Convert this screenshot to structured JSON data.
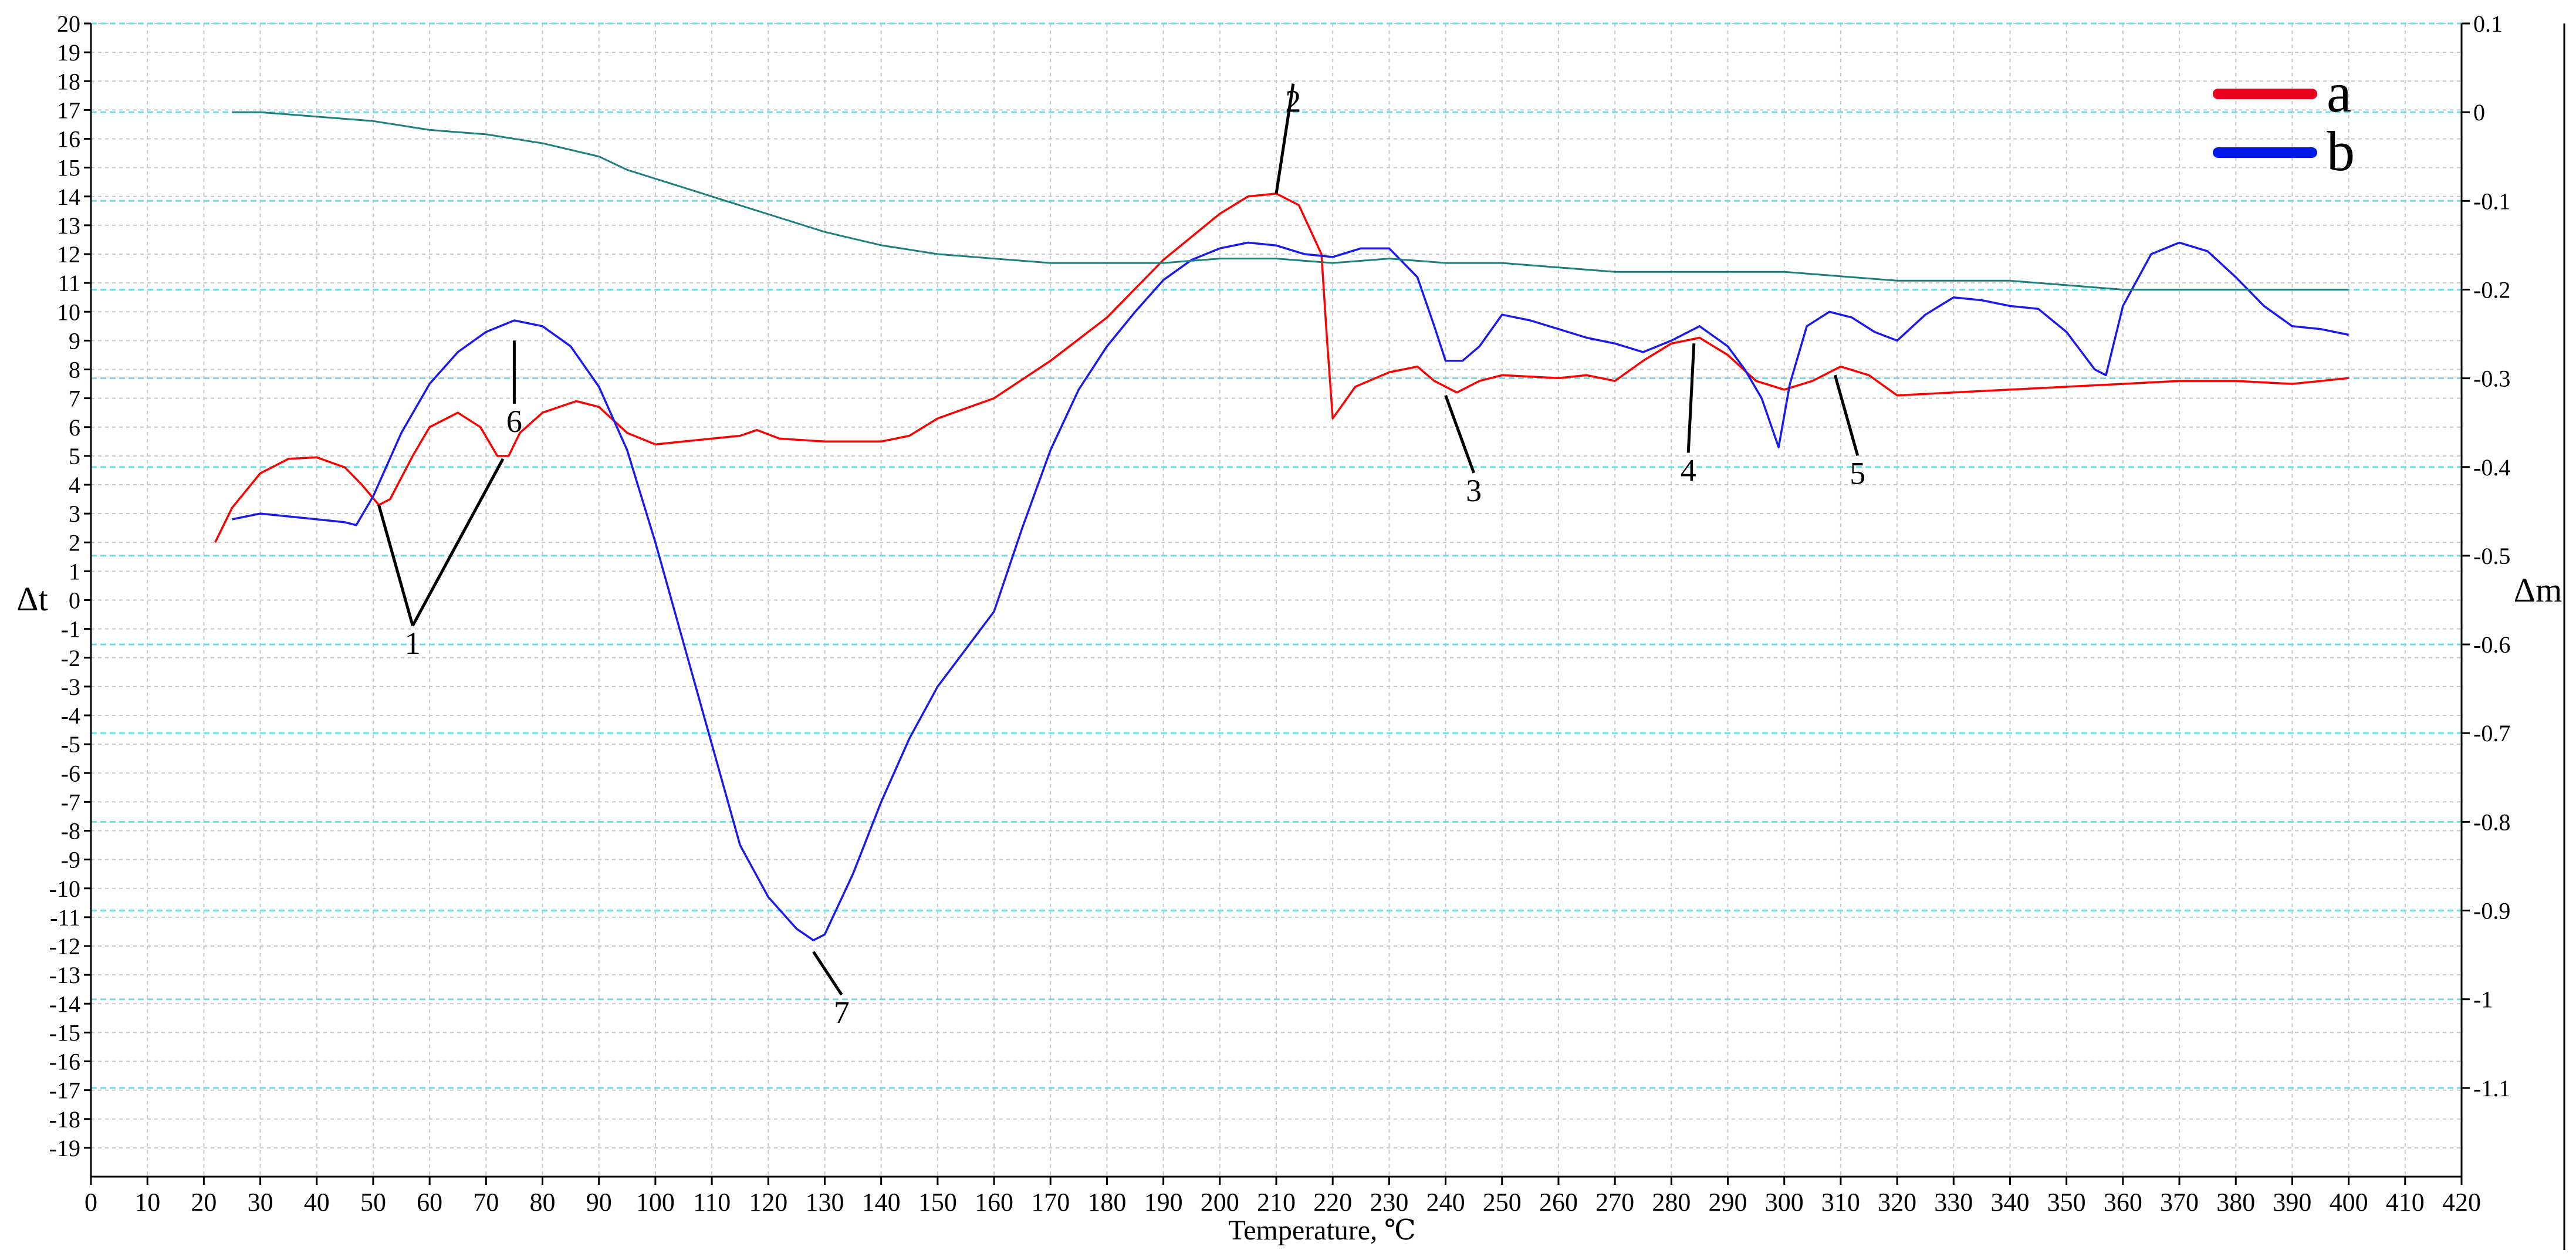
{
  "chart_data": {
    "type": "line",
    "title": "",
    "xlabel": "Temperature, ℃",
    "ylabel_left": "Δt",
    "ylabel_right": "Δm",
    "xlim": [
      0,
      420
    ],
    "ylim_left": [
      -20,
      20
    ],
    "ylim_right": [
      -1.2,
      0.1
    ],
    "x_ticks": [
      0,
      10,
      20,
      30,
      40,
      50,
      60,
      70,
      80,
      90,
      100,
      110,
      120,
      130,
      140,
      150,
      160,
      170,
      180,
      190,
      200,
      210,
      220,
      230,
      240,
      250,
      260,
      270,
      280,
      290,
      300,
      310,
      320,
      330,
      340,
      350,
      360,
      370,
      380,
      390,
      400,
      410,
      420
    ],
    "y_left_ticks": [
      20,
      19,
      18,
      17,
      16,
      15,
      14,
      13,
      12,
      11,
      10,
      9,
      8,
      7,
      6,
      5,
      4,
      3,
      2,
      1,
      0,
      -1,
      -2,
      -3,
      -4,
      -5,
      -6,
      -7,
      -8,
      -9,
      -10,
      -11,
      -12,
      -13,
      -14,
      -15,
      -16,
      -17,
      -18,
      -19
    ],
    "y_right_ticks": [
      "0.1",
      "0",
      "-0.1",
      "-0.2",
      "-0.3",
      "-0.4",
      "-0.5",
      "-0.6",
      "-0.7",
      "-0.8",
      "-0.9",
      "-1",
      "-1.1"
    ],
    "y_right_values": [
      0.1,
      0,
      -0.1,
      -0.2,
      -0.3,
      -0.4,
      -0.5,
      -0.6,
      -0.7,
      -0.8,
      -0.9,
      -1,
      -1.1
    ],
    "grid": true,
    "legend": {
      "position": "top-right",
      "entries": [
        {
          "label": "a",
          "color": "#e8001c"
        },
        {
          "label": "b",
          "color": "#0019e6"
        }
      ]
    },
    "series": [
      {
        "name": "a",
        "color": "#ff0000",
        "axis": "left",
        "points": [
          [
            22,
            2
          ],
          [
            25,
            3.2
          ],
          [
            30,
            4.4
          ],
          [
            35,
            4.9
          ],
          [
            40,
            4.95
          ],
          [
            45,
            4.6
          ],
          [
            48,
            4
          ],
          [
            51,
            3.3
          ],
          [
            53,
            3.5
          ],
          [
            57,
            5
          ],
          [
            60,
            6
          ],
          [
            65,
            6.5
          ],
          [
            69,
            6
          ],
          [
            72,
            5
          ],
          [
            74,
            5
          ],
          [
            76,
            5.8
          ],
          [
            80,
            6.5
          ],
          [
            86,
            6.9
          ],
          [
            90,
            6.7
          ],
          [
            95,
            5.8
          ],
          [
            100,
            5.4
          ],
          [
            105,
            5.5
          ],
          [
            110,
            5.6
          ],
          [
            115,
            5.7
          ],
          [
            118,
            5.9
          ],
          [
            122,
            5.6
          ],
          [
            130,
            5.5
          ],
          [
            140,
            5.5
          ],
          [
            145,
            5.7
          ],
          [
            150,
            6.3
          ],
          [
            160,
            7
          ],
          [
            170,
            8.3
          ],
          [
            180,
            9.8
          ],
          [
            190,
            11.8
          ],
          [
            200,
            13.4
          ],
          [
            205,
            14
          ],
          [
            210,
            14.1
          ],
          [
            214,
            13.7
          ],
          [
            218,
            12
          ],
          [
            219,
            9
          ],
          [
            220,
            6.3
          ],
          [
            224,
            7.4
          ],
          [
            230,
            7.9
          ],
          [
            235,
            8.1
          ],
          [
            238,
            7.6
          ],
          [
            242,
            7.2
          ],
          [
            246,
            7.6
          ],
          [
            250,
            7.8
          ],
          [
            260,
            7.7
          ],
          [
            265,
            7.8
          ],
          [
            270,
            7.6
          ],
          [
            275,
            8.3
          ],
          [
            280,
            8.9
          ],
          [
            285,
            9.1
          ],
          [
            290,
            8.5
          ],
          [
            295,
            7.6
          ],
          [
            300,
            7.3
          ],
          [
            305,
            7.6
          ],
          [
            310,
            8.1
          ],
          [
            315,
            7.8
          ],
          [
            320,
            7.1
          ],
          [
            330,
            7.2
          ],
          [
            340,
            7.3
          ],
          [
            350,
            7.4
          ],
          [
            360,
            7.5
          ],
          [
            370,
            7.6
          ],
          [
            380,
            7.6
          ],
          [
            390,
            7.5
          ],
          [
            400,
            7.7
          ]
        ]
      },
      {
        "name": "b",
        "color": "#1a1aee",
        "axis": "left",
        "points": [
          [
            25,
            2.8
          ],
          [
            30,
            3
          ],
          [
            35,
            2.9
          ],
          [
            40,
            2.8
          ],
          [
            45,
            2.7
          ],
          [
            47,
            2.6
          ],
          [
            50,
            3.6
          ],
          [
            55,
            5.8
          ],
          [
            60,
            7.5
          ],
          [
            65,
            8.6
          ],
          [
            70,
            9.3
          ],
          [
            75,
            9.7
          ],
          [
            80,
            9.5
          ],
          [
            85,
            8.8
          ],
          [
            90,
            7.4
          ],
          [
            95,
            5.2
          ],
          [
            100,
            2
          ],
          [
            105,
            -1.5
          ],
          [
            110,
            -5
          ],
          [
            115,
            -8.5
          ],
          [
            120,
            -10.3
          ],
          [
            125,
            -11.4
          ],
          [
            128,
            -11.8
          ],
          [
            130,
            -11.6
          ],
          [
            135,
            -9.5
          ],
          [
            140,
            -7
          ],
          [
            145,
            -4.8
          ],
          [
            150,
            -3
          ],
          [
            155,
            -1.7
          ],
          [
            160,
            -0.4
          ],
          [
            165,
            2.5
          ],
          [
            170,
            5.2
          ],
          [
            175,
            7.3
          ],
          [
            180,
            8.8
          ],
          [
            185,
            10
          ],
          [
            190,
            11.1
          ],
          [
            195,
            11.8
          ],
          [
            200,
            12.2
          ],
          [
            205,
            12.4
          ],
          [
            210,
            12.3
          ],
          [
            215,
            12
          ],
          [
            220,
            11.9
          ],
          [
            225,
            12.2
          ],
          [
            230,
            12.2
          ],
          [
            235,
            11.2
          ],
          [
            238,
            9.5
          ],
          [
            240,
            8.3
          ],
          [
            243,
            8.3
          ],
          [
            246,
            8.8
          ],
          [
            250,
            9.9
          ],
          [
            255,
            9.7
          ],
          [
            260,
            9.4
          ],
          [
            265,
            9.1
          ],
          [
            270,
            8.9
          ],
          [
            275,
            8.6
          ],
          [
            280,
            9
          ],
          [
            285,
            9.5
          ],
          [
            290,
            8.8
          ],
          [
            293,
            8
          ],
          [
            296,
            7
          ],
          [
            299,
            5.3
          ],
          [
            301,
            7.5
          ],
          [
            304,
            9.5
          ],
          [
            308,
            10
          ],
          [
            312,
            9.8
          ],
          [
            316,
            9.3
          ],
          [
            320,
            9
          ],
          [
            325,
            9.9
          ],
          [
            330,
            10.5
          ],
          [
            335,
            10.4
          ],
          [
            340,
            10.2
          ],
          [
            345,
            10.1
          ],
          [
            350,
            9.3
          ],
          [
            355,
            8
          ],
          [
            357,
            7.8
          ],
          [
            360,
            10.2
          ],
          [
            365,
            12
          ],
          [
            370,
            12.4
          ],
          [
            375,
            12.1
          ],
          [
            380,
            11.2
          ],
          [
            385,
            10.2
          ],
          [
            390,
            9.5
          ],
          [
            395,
            9.4
          ],
          [
            400,
            9.2
          ]
        ]
      },
      {
        "name": "",
        "color": "#1f7f7f",
        "axis": "right",
        "points": [
          [
            25,
            0
          ],
          [
            30,
            0
          ],
          [
            40,
            -0.005
          ],
          [
            50,
            -0.01
          ],
          [
            60,
            -0.02
          ],
          [
            70,
            -0.025
          ],
          [
            80,
            -0.035
          ],
          [
            90,
            -0.05
          ],
          [
            95,
            -0.065
          ],
          [
            100,
            -0.075
          ],
          [
            105,
            -0.085
          ],
          [
            110,
            -0.095
          ],
          [
            115,
            -0.105
          ],
          [
            120,
            -0.115
          ],
          [
            125,
            -0.125
          ],
          [
            130,
            -0.135
          ],
          [
            140,
            -0.15
          ],
          [
            150,
            -0.16
          ],
          [
            160,
            -0.165
          ],
          [
            170,
            -0.17
          ],
          [
            180,
            -0.17
          ],
          [
            190,
            -0.17
          ],
          [
            200,
            -0.165
          ],
          [
            210,
            -0.165
          ],
          [
            220,
            -0.17
          ],
          [
            230,
            -0.165
          ],
          [
            240,
            -0.17
          ],
          [
            250,
            -0.17
          ],
          [
            260,
            -0.175
          ],
          [
            270,
            -0.18
          ],
          [
            280,
            -0.18
          ],
          [
            290,
            -0.18
          ],
          [
            300,
            -0.18
          ],
          [
            310,
            -0.185
          ],
          [
            320,
            -0.19
          ],
          [
            330,
            -0.19
          ],
          [
            340,
            -0.19
          ],
          [
            350,
            -0.195
          ],
          [
            360,
            -0.2
          ],
          [
            370,
            -0.2
          ],
          [
            380,
            -0.2
          ],
          [
            390,
            -0.2
          ],
          [
            400,
            -0.2
          ]
        ]
      }
    ],
    "annotations": [
      {
        "label": "1",
        "x": 57,
        "y": -1.5,
        "targets": [
          [
            51,
            3.3
          ],
          [
            73,
            4.9
          ]
        ]
      },
      {
        "label": "2",
        "x": 213,
        "y": 17.3,
        "targets": [
          [
            210,
            14.1
          ]
        ]
      },
      {
        "label": "3",
        "x": 245,
        "y": 3.8,
        "targets": [
          [
            240,
            7.1
          ]
        ]
      },
      {
        "label": "4",
        "x": 283,
        "y": 4.5,
        "targets": [
          [
            284,
            8.9
          ]
        ]
      },
      {
        "label": "5",
        "x": 313,
        "y": 4.4,
        "targets": [
          [
            309,
            7.8
          ]
        ]
      },
      {
        "label": "6",
        "x": 75,
        "y": 6.2,
        "targets": [
          [
            75,
            9.0
          ]
        ]
      },
      {
        "label": "7",
        "x": 133,
        "y": -14.3,
        "targets": [
          [
            128,
            -12.2
          ]
        ]
      }
    ]
  }
}
